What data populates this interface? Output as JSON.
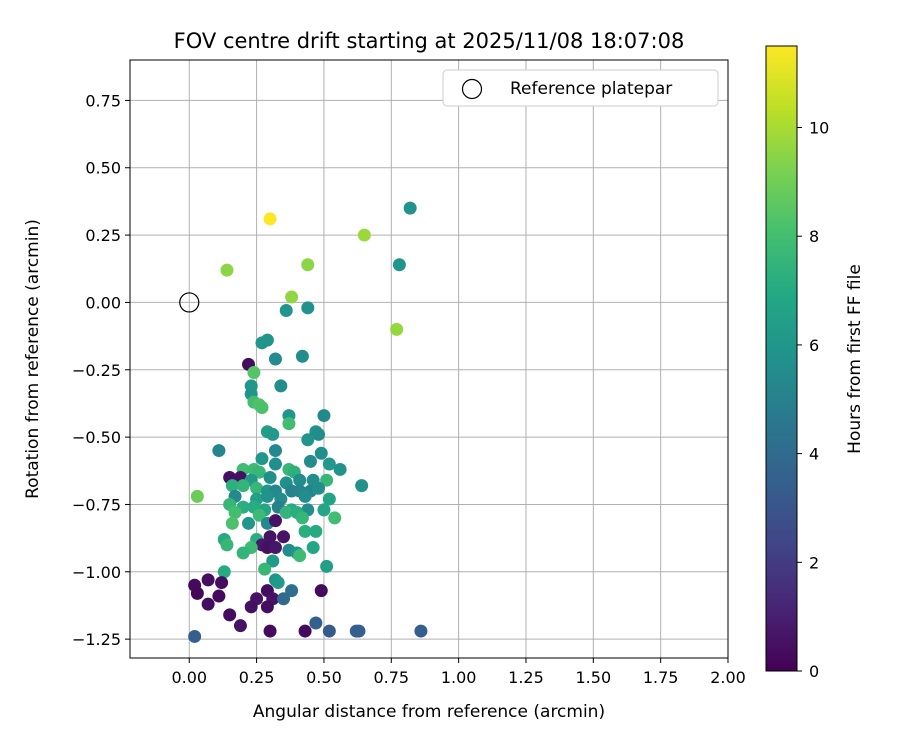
{
  "chart_data": {
    "type": "scatter",
    "title": "FOV centre drift starting at 2025/11/08 18:07:08",
    "xlabel": "Angular distance from reference (arcmin)",
    "ylabel": "Rotation from reference (arcmin)",
    "xlim": [
      -0.22,
      2.0
    ],
    "ylim": [
      -1.32,
      0.9
    ],
    "grid": true,
    "x_ticks": [
      0.0,
      0.25,
      0.5,
      0.75,
      1.0,
      1.25,
      1.5,
      1.75,
      2.0
    ],
    "x_tick_labels": [
      "0.00",
      "0.25",
      "0.50",
      "0.75",
      "1.00",
      "1.25",
      "1.50",
      "1.75",
      "2.00"
    ],
    "y_ticks": [
      0.75,
      0.5,
      0.25,
      0.0,
      -0.25,
      -0.5,
      -0.75,
      -1.0,
      -1.25
    ],
    "y_tick_labels": [
      "0.75",
      "0.50",
      "0.25",
      "0.00",
      "−0.25",
      "−0.50",
      "−0.75",
      "−1.00",
      "−1.25"
    ],
    "legend": {
      "position": "top-right",
      "label": "Reference platepar"
    },
    "reference_point": {
      "x": 0.0,
      "y": 0.0
    },
    "colorbar": {
      "label": "Hours from first FF file",
      "range": [
        0,
        11.5
      ],
      "ticks": [
        0,
        2,
        4,
        6,
        8,
        10
      ],
      "tick_labels": [
        "0",
        "2",
        "4",
        "6",
        "8",
        "10"
      ],
      "colormap": "viridis"
    },
    "points": [
      [
        0.3,
        0.31,
        11.5
      ],
      [
        0.82,
        0.35,
        5.8
      ],
      [
        0.65,
        0.25,
        9.8
      ],
      [
        0.14,
        0.12,
        9.5
      ],
      [
        0.44,
        0.14,
        9.5
      ],
      [
        0.38,
        0.02,
        9.6
      ],
      [
        0.78,
        0.14,
        6.0
      ],
      [
        0.44,
        -0.02,
        5.8
      ],
      [
        0.36,
        -0.03,
        5.9
      ],
      [
        0.77,
        -0.1,
        9.7
      ],
      [
        0.27,
        -0.15,
        6.0
      ],
      [
        0.29,
        -0.14,
        5.9
      ],
      [
        0.32,
        -0.21,
        5.5
      ],
      [
        0.42,
        -0.2,
        5.5
      ],
      [
        0.22,
        -0.23,
        0.4
      ],
      [
        0.24,
        -0.26,
        8.4
      ],
      [
        0.23,
        -0.31,
        6.0
      ],
      [
        0.34,
        -0.31,
        5.6
      ],
      [
        0.23,
        -0.34,
        5.9
      ],
      [
        0.24,
        -0.37,
        8.0
      ],
      [
        0.26,
        -0.38,
        8.3
      ],
      [
        0.27,
        -0.39,
        8.2
      ],
      [
        0.37,
        -0.42,
        6.0
      ],
      [
        0.5,
        -0.42,
        5.4
      ],
      [
        0.37,
        -0.45,
        7.9
      ],
      [
        0.29,
        -0.48,
        6.4
      ],
      [
        0.31,
        -0.49,
        6.2
      ],
      [
        0.47,
        -0.48,
        5.8
      ],
      [
        0.48,
        -0.49,
        5.6
      ],
      [
        0.44,
        -0.51,
        5.9
      ],
      [
        0.11,
        -0.55,
        5.2
      ],
      [
        0.32,
        -0.55,
        5.4
      ],
      [
        0.49,
        -0.56,
        5.7
      ],
      [
        0.27,
        -0.58,
        6.0
      ],
      [
        0.32,
        -0.6,
        5.7
      ],
      [
        0.45,
        -0.59,
        5.5
      ],
      [
        0.52,
        -0.6,
        6.1
      ],
      [
        0.56,
        -0.62,
        5.8
      ],
      [
        0.2,
        -0.62,
        7.9
      ],
      [
        0.24,
        -0.62,
        7.8
      ],
      [
        0.26,
        -0.63,
        7.6
      ],
      [
        0.37,
        -0.62,
        7.6
      ],
      [
        0.39,
        -0.63,
        7.3
      ],
      [
        0.15,
        -0.65,
        0.5
      ],
      [
        0.19,
        -0.65,
        0.5
      ],
      [
        0.23,
        -0.66,
        6.2
      ],
      [
        0.3,
        -0.65,
        5.7
      ],
      [
        0.36,
        -0.67,
        5.7
      ],
      [
        0.41,
        -0.66,
        5.6
      ],
      [
        0.46,
        -0.66,
        5.7
      ],
      [
        0.51,
        -0.66,
        7.6
      ],
      [
        0.64,
        -0.68,
        5.8
      ],
      [
        0.16,
        -0.68,
        7.3
      ],
      [
        0.2,
        -0.68,
        7.5
      ],
      [
        0.25,
        -0.69,
        7.6
      ],
      [
        0.29,
        -0.7,
        6.0
      ],
      [
        0.32,
        -0.7,
        5.4
      ],
      [
        0.38,
        -0.7,
        5.1
      ],
      [
        0.41,
        -0.7,
        5.3
      ],
      [
        0.45,
        -0.7,
        5.2
      ],
      [
        0.48,
        -0.69,
        5.6
      ],
      [
        0.03,
        -0.72,
        8.9
      ],
      [
        0.17,
        -0.72,
        5.4
      ],
      [
        0.25,
        -0.73,
        6.5
      ],
      [
        0.29,
        -0.72,
        5.8
      ],
      [
        0.34,
        -0.73,
        5.6
      ],
      [
        0.43,
        -0.72,
        5.5
      ],
      [
        0.52,
        -0.73,
        6.7
      ],
      [
        0.15,
        -0.75,
        7.6
      ],
      [
        0.2,
        -0.76,
        7.2
      ],
      [
        0.24,
        -0.76,
        7.1
      ],
      [
        0.28,
        -0.77,
        6.8
      ],
      [
        0.33,
        -0.76,
        5.0
      ],
      [
        0.38,
        -0.77,
        7.0
      ],
      [
        0.44,
        -0.77,
        5.5
      ],
      [
        0.5,
        -0.77,
        6.8
      ],
      [
        0.17,
        -0.78,
        8.0
      ],
      [
        0.26,
        -0.79,
        7.8
      ],
      [
        0.36,
        -0.78,
        7.5
      ],
      [
        0.4,
        -0.78,
        7.2
      ],
      [
        0.42,
        -0.8,
        7.6
      ],
      [
        0.54,
        -0.8,
        7.9
      ],
      [
        0.16,
        -0.82,
        8.2
      ],
      [
        0.22,
        -0.82,
        6.0
      ],
      [
        0.29,
        -0.82,
        5.4
      ],
      [
        0.32,
        -0.81,
        0.6
      ],
      [
        0.43,
        -0.85,
        7.2
      ],
      [
        0.47,
        -0.85,
        7.0
      ],
      [
        0.3,
        -0.87,
        0.6
      ],
      [
        0.35,
        -0.87,
        0.6
      ],
      [
        0.13,
        -0.88,
        7.0
      ],
      [
        0.25,
        -0.88,
        7.2
      ],
      [
        0.27,
        -0.9,
        0.8
      ],
      [
        0.14,
        -0.9,
        7.6
      ],
      [
        0.23,
        -0.91,
        7.8
      ],
      [
        0.29,
        -0.91,
        0.5
      ],
      [
        0.32,
        -0.91,
        0.7
      ],
      [
        0.37,
        -0.92,
        5.5
      ],
      [
        0.4,
        -0.93,
        5.9
      ],
      [
        0.46,
        -0.91,
        6.8
      ],
      [
        0.2,
        -0.93,
        7.5
      ],
      [
        0.41,
        -0.94,
        7.8
      ],
      [
        0.31,
        -0.96,
        6.2
      ],
      [
        0.51,
        -0.98,
        6.5
      ],
      [
        0.28,
        -0.99,
        7.6
      ],
      [
        0.13,
        -1.0,
        7.0
      ],
      [
        0.32,
        -1.03,
        5.8
      ],
      [
        0.33,
        -1.04,
        6.2
      ],
      [
        0.02,
        -1.05,
        0.3
      ],
      [
        0.07,
        -1.03,
        0.4
      ],
      [
        0.12,
        -1.04,
        0.4
      ],
      [
        0.29,
        -1.07,
        0.4
      ],
      [
        0.38,
        -1.07,
        4.2
      ],
      [
        0.49,
        -1.07,
        0.3
      ],
      [
        0.03,
        -1.08,
        0.2
      ],
      [
        0.11,
        -1.09,
        0.3
      ],
      [
        0.25,
        -1.1,
        0.6
      ],
      [
        0.31,
        -1.1,
        0.6
      ],
      [
        0.35,
        -1.1,
        4.0
      ],
      [
        0.07,
        -1.12,
        0.4
      ],
      [
        0.23,
        -1.13,
        0.5
      ],
      [
        0.29,
        -1.13,
        0.4
      ],
      [
        0.15,
        -1.16,
        0.4
      ],
      [
        0.47,
        -1.19,
        3.5
      ],
      [
        0.19,
        -1.2,
        0.6
      ],
      [
        0.3,
        -1.22,
        0.3
      ],
      [
        0.43,
        -1.22,
        0.3
      ],
      [
        0.52,
        -1.22,
        3.3
      ],
      [
        0.62,
        -1.22,
        3.5
      ],
      [
        0.63,
        -1.22,
        3.5
      ],
      [
        0.86,
        -1.22,
        3.5
      ],
      [
        0.02,
        -1.24,
        3.5
      ]
    ]
  }
}
